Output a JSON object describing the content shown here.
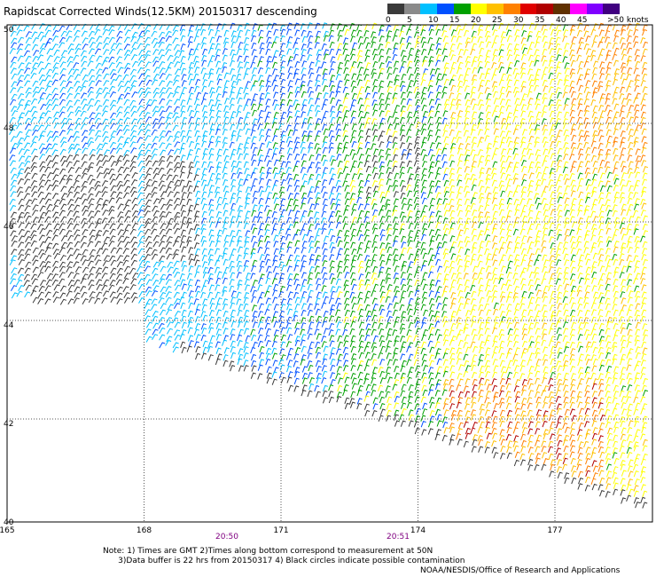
{
  "title": "Rapidscat Corrected Winds(12.5KM) 20150317 descending",
  "legend": {
    "colors": [
      "#3a3a3a",
      "#8a8a8a",
      "#00c0ff",
      "#0050ff",
      "#00a000",
      "#ffff00",
      "#ffc000",
      "#ff8000",
      "#e00000",
      "#b00000",
      "#603000",
      "#ff00ff",
      "#8000ff",
      "#400080"
    ],
    "labels": [
      "0",
      "5",
      "10",
      "15",
      "20",
      "25",
      "30",
      "35",
      "40",
      "45",
      ">50"
    ],
    "units": "knots"
  },
  "axes": {
    "lon_labels": [
      "165",
      "168",
      "171",
      "174",
      "177"
    ],
    "lat_labels": [
      "50",
      "48",
      "46",
      "44",
      "42",
      "40"
    ]
  },
  "times": [
    "20:50",
    "20:51"
  ],
  "notes": "Note: 1) Times are GMT 2)Times along bottom correspond to measurement at 50N\n      3)Data buffer is 22 hrs from 20150317 4) Black circles indicate possible contamination",
  "credit": "NOAA/NESDIS/Office of Research and Applications"
}
